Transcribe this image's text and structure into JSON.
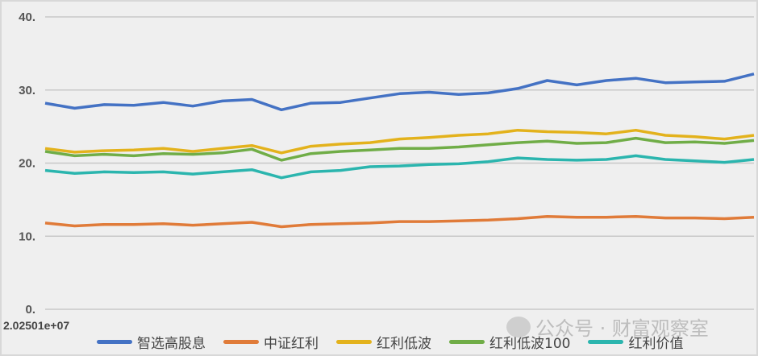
{
  "chart_data": {
    "type": "line",
    "title": "",
    "xlabel": "",
    "ylabel": "",
    "ylim": [
      0,
      40
    ],
    "yticks": [
      "0.",
      "10.",
      "20.",
      "30.",
      "40."
    ],
    "ytick_values": [
      0,
      10,
      20,
      30,
      40
    ],
    "xtick_label": "2.02501e+07",
    "grid": "horizontal",
    "legend_position": "bottom",
    "series": [
      {
        "name": "智选高股息",
        "color": "#4472c4",
        "values": [
          28.2,
          27.5,
          28.0,
          27.9,
          28.3,
          27.8,
          28.5,
          28.7,
          27.3,
          28.2,
          28.3,
          28.9,
          29.5,
          29.7,
          29.4,
          29.6,
          30.2,
          31.3,
          30.7,
          31.3,
          31.6,
          31.0,
          31.1,
          31.2,
          32.2
        ]
      },
      {
        "name": "中证红利",
        "color": "#e07b39",
        "values": [
          11.8,
          11.4,
          11.6,
          11.6,
          11.7,
          11.5,
          11.7,
          11.9,
          11.3,
          11.6,
          11.7,
          11.8,
          12.0,
          12.0,
          12.1,
          12.2,
          12.4,
          12.7,
          12.6,
          12.6,
          12.7,
          12.5,
          12.5,
          12.4,
          12.6
        ]
      },
      {
        "name": "红利低波",
        "color": "#e3b21c",
        "values": [
          22.0,
          21.5,
          21.7,
          21.8,
          22.0,
          21.6,
          22.0,
          22.4,
          21.4,
          22.3,
          22.6,
          22.8,
          23.3,
          23.5,
          23.8,
          24.0,
          24.5,
          24.3,
          24.2,
          24.0,
          24.5,
          23.8,
          23.6,
          23.3,
          23.8
        ]
      },
      {
        "name": "红利低波100",
        "color": "#70ad47",
        "values": [
          21.6,
          21.0,
          21.2,
          21.0,
          21.3,
          21.2,
          21.4,
          21.9,
          20.4,
          21.3,
          21.6,
          21.8,
          22.0,
          22.0,
          22.2,
          22.5,
          22.8,
          23.0,
          22.7,
          22.8,
          23.4,
          22.8,
          22.9,
          22.7,
          23.1
        ]
      },
      {
        "name": "红利价值",
        "color": "#2bb5ae",
        "values": [
          19.0,
          18.6,
          18.8,
          18.7,
          18.8,
          18.5,
          18.8,
          19.1,
          18.0,
          18.8,
          19.0,
          19.5,
          19.6,
          19.8,
          19.9,
          20.2,
          20.7,
          20.5,
          20.4,
          20.5,
          21.0,
          20.5,
          20.3,
          20.1,
          20.5
        ]
      }
    ]
  },
  "watermark": "公众号 · 财富观察室"
}
